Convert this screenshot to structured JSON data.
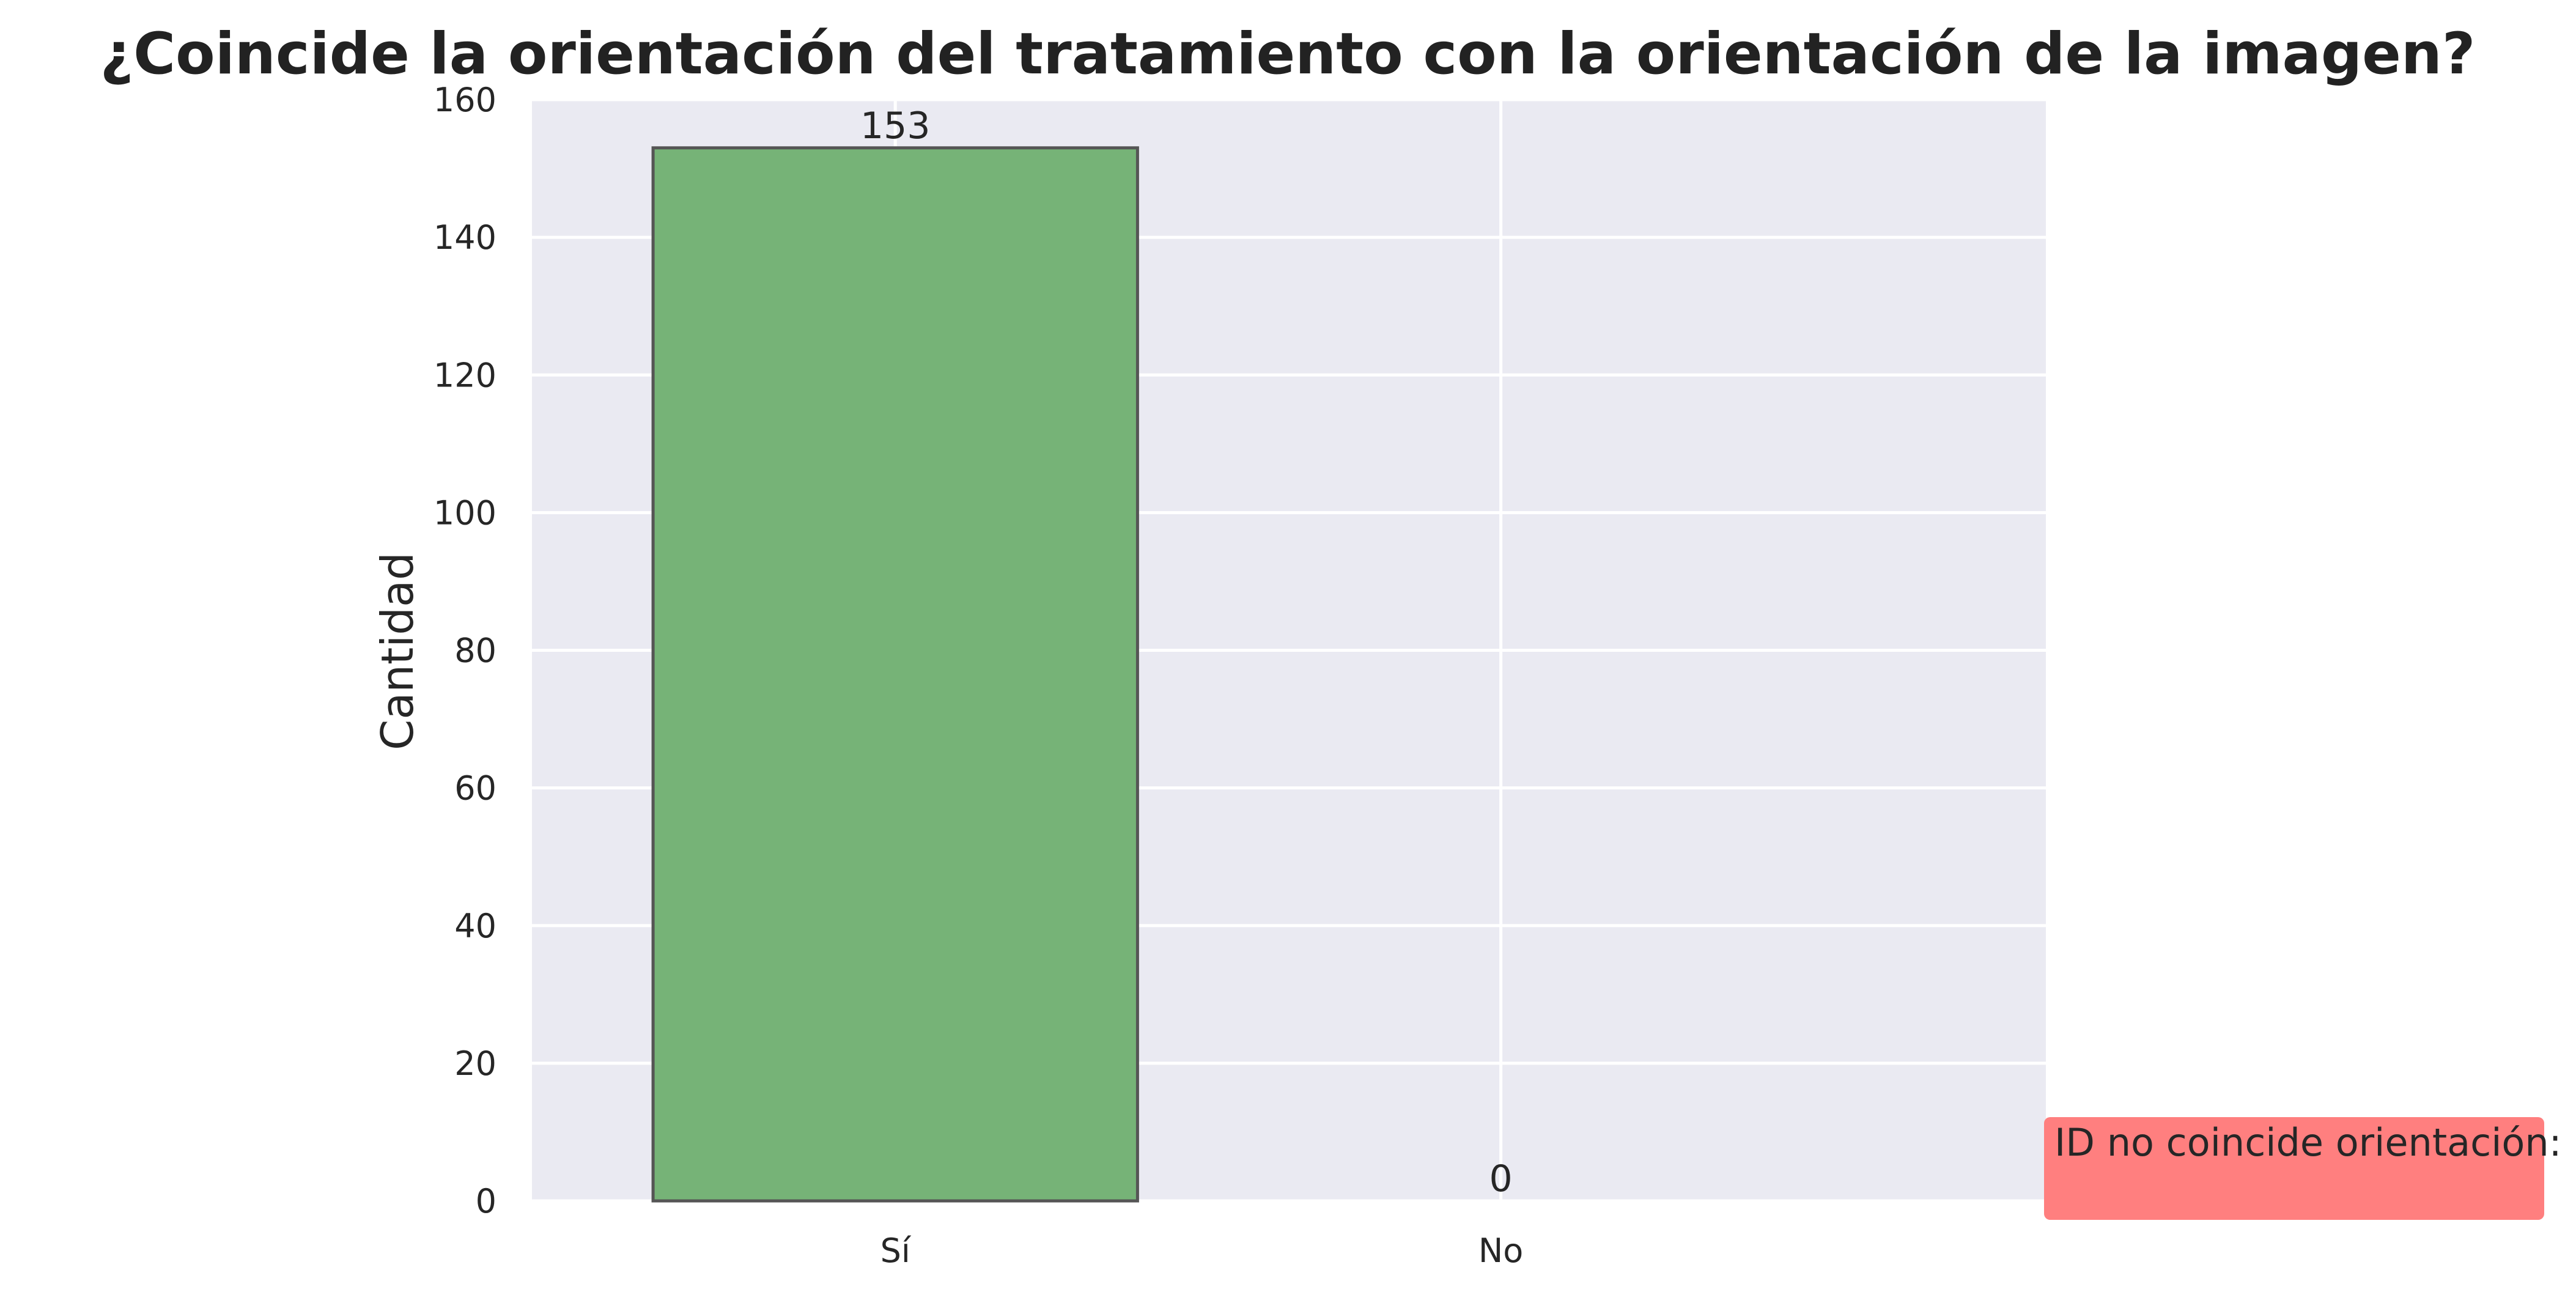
{
  "chart_data": {
    "type": "bar",
    "title": "¿Coincide la orientación del tratamiento con la orientación de la imagen?",
    "xlabel": "",
    "ylabel": "Cantidad",
    "categories": [
      "Sí",
      "No"
    ],
    "values": [
      153,
      0
    ],
    "value_labels": [
      "153",
      "0"
    ],
    "ylim": [
      0,
      160
    ],
    "yticks": [
      0,
      20,
      40,
      60,
      80,
      100,
      120,
      140,
      160
    ],
    "grid": true,
    "colors": {
      "bar": "#76b377",
      "bar_edge": "#555555",
      "plot_background": "#eaeaf2",
      "grid": "#ffffff",
      "note_background": "#ff7f7f"
    },
    "annotation": {
      "text": "ID no coincide orientación:",
      "position": "bottom-right"
    }
  }
}
